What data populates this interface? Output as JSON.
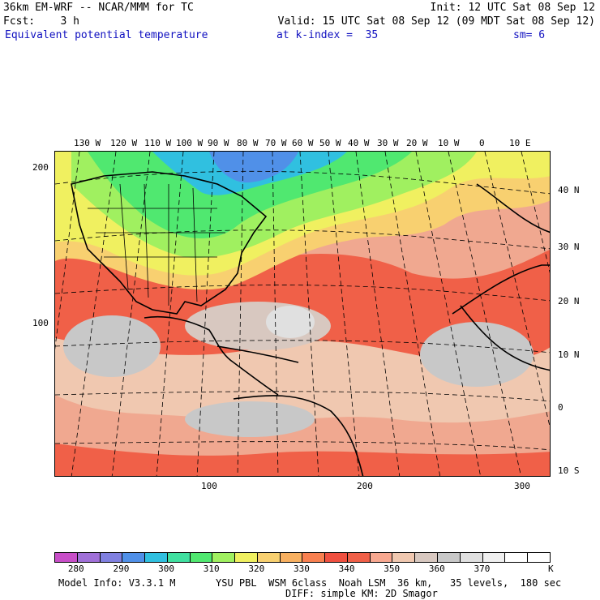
{
  "header": {
    "line1_left": "36km EM-WRF -- NCAR/MMM for TC",
    "line1_right": "Init: 12 UTC Sat 08 Sep 12",
    "line2_left": "Fcst:    3 h",
    "line2_right": "Valid: 15 UTC Sat 08 Sep 12 (09 MDT Sat 08 Sep 12)",
    "field": "Equivalent potential temperature",
    "kindex": "at k-index =  35",
    "smooth": "sm= 6"
  },
  "map": {
    "top_lon_labels": [
      "130 W",
      "120 W",
      "110 W",
      "100 W",
      "90 W",
      "80 W",
      "70 W",
      "60 W",
      "50 W",
      "40 W",
      "30 W",
      "20 W",
      "10 W",
      "0",
      "10 E"
    ],
    "right_lat_labels": [
      "40 N",
      "30 N",
      "20 N",
      "10 N",
      "0",
      "10 S"
    ],
    "left_grid_labels": [
      "200",
      "100"
    ],
    "bottom_grid_labels": [
      "100",
      "200",
      "300"
    ]
  },
  "colorbar": {
    "colors": [
      "#c84ec8",
      "#a070d8",
      "#8080e0",
      "#5090e8",
      "#30c0e0",
      "#40e0a0",
      "#50e870",
      "#a0f060",
      "#f0f060",
      "#f8d070",
      "#f8b060",
      "#f88050",
      "#f05040",
      "#f06048",
      "#f8a890",
      "#f0c8b0",
      "#d8c8c0",
      "#c8c8c8",
      "#e0e0e0",
      "#f0f0f0",
      "#ffffff",
      "#ffffff"
    ],
    "labels": [
      "280",
      "290",
      "300",
      "310",
      "320",
      "330",
      "340",
      "350",
      "360",
      "370"
    ],
    "unit": "K"
  },
  "footer": {
    "model_info": "Model Info: V3.3.1 M",
    "physics": "YSU PBL  WSM 6class  Noah LSM  36 km,   35 levels,  180 sec",
    "diff": "DIFF: simple KM: 2D Smagor"
  }
}
